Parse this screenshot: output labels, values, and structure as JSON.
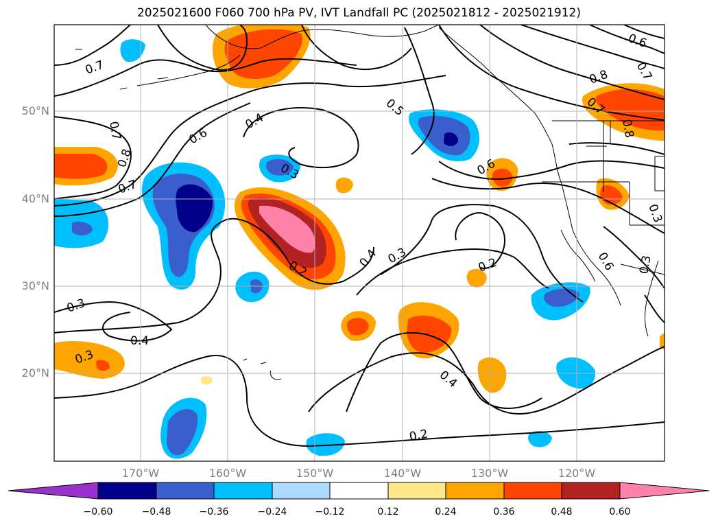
{
  "title": "2025021600 F060 700 hPa PV, IVT Landfall PC (2025021812 - 2025021912)",
  "axes": {
    "lat_labels": [
      "50°N",
      "40°N",
      "30°N",
      "20°N"
    ],
    "lon_labels": [
      "170°W",
      "160°W",
      "150°W",
      "140°W",
      "130°W",
      "120°W"
    ],
    "grid": true,
    "grid_color": "#b0b0b0",
    "label_color": "#7f7f7f"
  },
  "contour_labels": [
    "0.7",
    "0.7",
    "0.8",
    "0.7",
    "0.6",
    "0.4",
    "0.3",
    "0.5",
    "0.6",
    "0.8",
    "0.7",
    "0.6",
    "0.7",
    "0.8",
    "0.2",
    "0.3",
    "0.4",
    "0.3",
    "0.4",
    "0.2",
    "0.4",
    "0.3",
    "0.2",
    "0.6",
    "0.3",
    "0.3"
  ],
  "colorbar": {
    "ticks": [
      "−0.60",
      "−0.48",
      "−0.36",
      "−0.24",
      "−0.12",
      "0.12",
      "0.24",
      "0.36",
      "0.48",
      "0.60"
    ],
    "colors": [
      "#9932cc",
      "#00008b",
      "#3a5fcd",
      "#00bfff",
      "#add8ff",
      "#ffffff",
      "#ffe88a",
      "#ffa500",
      "#ff4500",
      "#b22222",
      "#ff82ab"
    ]
  },
  "colors": {
    "neg_strong": "#00008b",
    "neg_mid": "#3a5fcd",
    "neg_light": "#00bfff",
    "neg_faint": "#add8ff",
    "pos_faint": "#ffe88a",
    "pos_light": "#ffa500",
    "pos_mid": "#ff4500",
    "pos_strong": "#b22222",
    "pos_max": "#ff82ab"
  }
}
